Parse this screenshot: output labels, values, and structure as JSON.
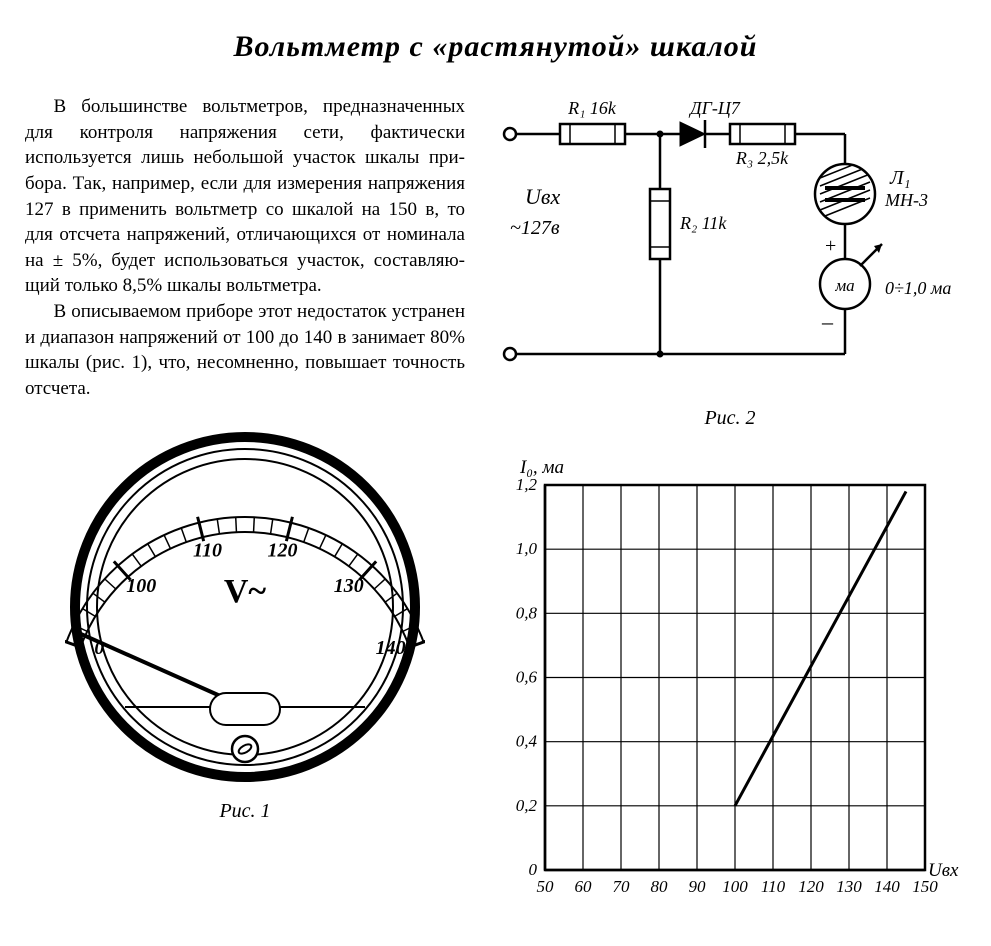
{
  "title": "Вольтметр с «растянутой» шкалой",
  "paragraph1": "В большинстве вольтметров, пред­назначенных для контроля напряже­ния сети, фактически используется лишь небольшой участок шкалы при­бора. Так, например, если для изме­рения напряжения 127 в применить вольтметр со шкалой на 150 в, то для отсчета напряжений, отличаю­щихся от номинала на ± 5%, будет использоваться участок, составляю­щий только 8,5% шкалы вольтметра.",
  "paragraph2": "В описываемом приборе этот недо­статок устранен и диапазон напря­жений от 100 до 140 в занимает 80% шкалы (рис. 1), что, несомнен­но, повышает точность отсчета.",
  "fig1": {
    "caption": "Рис. 1",
    "scale_labels": [
      "0",
      "100",
      "110",
      "120",
      "130",
      "140"
    ],
    "unit": "V~",
    "outer_stroke": "#000",
    "face_fill": "#fff"
  },
  "fig2": {
    "caption": "Рис. 2",
    "labels": {
      "R1": "R₁ 16k",
      "R2": "R₂ 11k",
      "R3": "R₃ 2,5k",
      "diode": "ДГ-Ц7",
      "lamp": "Л₁",
      "lamp_type": "МН-3",
      "uin": "Uвх",
      "uin_val": "~127в",
      "meter": "ма",
      "meter_range": "0÷1,0 ма"
    },
    "stroke": "#000"
  },
  "chart": {
    "type": "line",
    "ylabel": "I₀, ма",
    "xlabel": "Uвх",
    "xlim": [
      50,
      150
    ],
    "ylim": [
      0,
      1.2
    ],
    "xtick_labels": [
      "50",
      "60",
      "70",
      "80",
      "90",
      "100",
      "110",
      "120",
      "130",
      "140",
      "150"
    ],
    "ytick_labels": [
      "0",
      "0,2",
      "0,4",
      "0,6",
      "0,8",
      "1,0",
      "1,2"
    ],
    "grid_color": "#000",
    "line_color": "#000",
    "line_width": 3,
    "data": [
      {
        "x": 100,
        "y": 0.2
      },
      {
        "x": 145,
        "y": 1.18
      }
    ],
    "font_size": 17
  }
}
